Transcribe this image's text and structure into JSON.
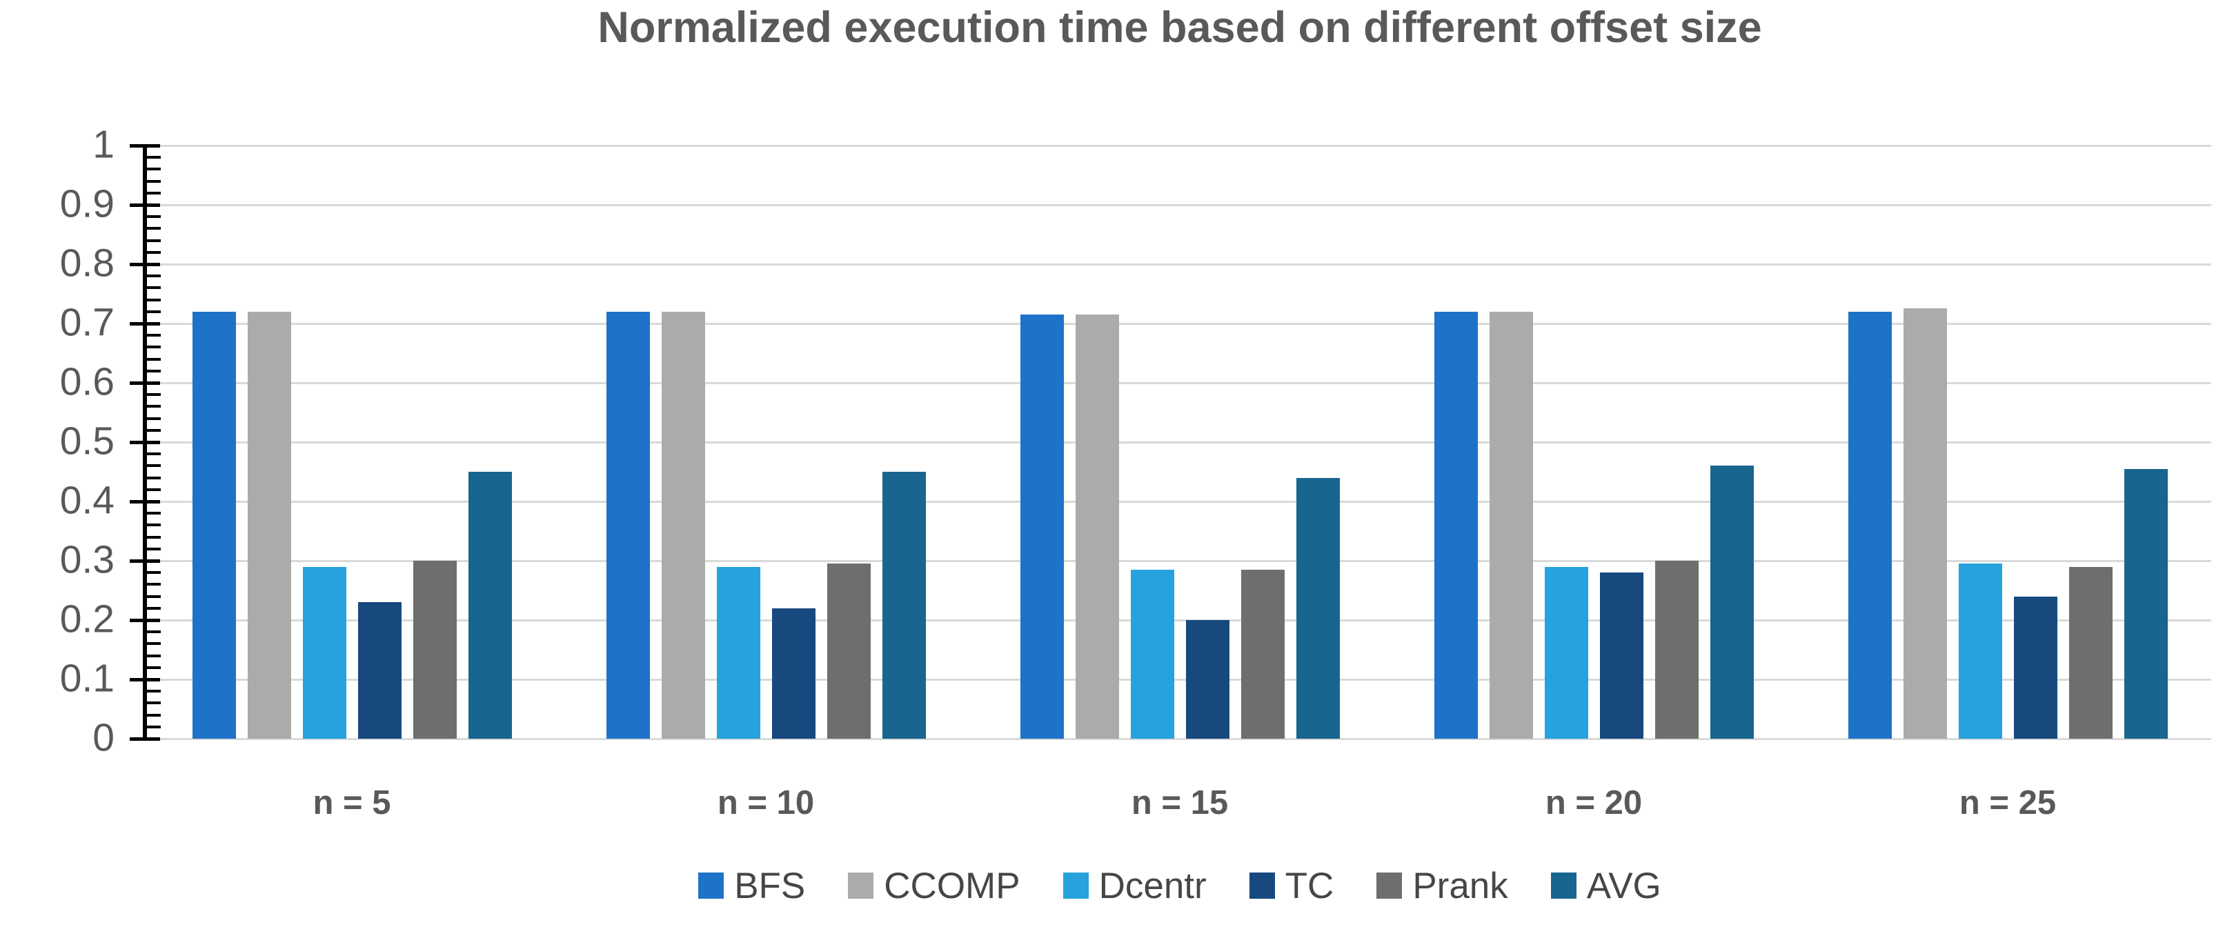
{
  "title": "Normalized execution time based on different offset size",
  "chart_data": {
    "type": "bar",
    "title": "Normalized execution time based on different offset size",
    "categories": [
      "n = 5",
      "n = 10",
      "n = 15",
      "n = 20",
      "n = 25"
    ],
    "series": [
      {
        "name": "BFS",
        "color": "#1e72c8",
        "values": [
          0.72,
          0.72,
          0.715,
          0.72,
          0.72
        ]
      },
      {
        "name": "CCOMP",
        "color": "#ababab",
        "values": [
          0.72,
          0.72,
          0.715,
          0.72,
          0.725
        ]
      },
      {
        "name": "Dcentr",
        "color": "#27a2dc",
        "values": [
          0.29,
          0.29,
          0.285,
          0.29,
          0.295
        ]
      },
      {
        "name": "TC",
        "color": "#17497e",
        "values": [
          0.23,
          0.22,
          0.2,
          0.28,
          0.24
        ]
      },
      {
        "name": "Prank",
        "color": "#6e6e6e",
        "values": [
          0.3,
          0.295,
          0.285,
          0.3,
          0.29
        ]
      },
      {
        "name": "AVG",
        "color": "#186590",
        "values": [
          0.45,
          0.45,
          0.44,
          0.46,
          0.455
        ]
      }
    ],
    "xlabel": "",
    "ylabel": "",
    "ylim": [
      0,
      1
    ],
    "ytick_values": [
      0,
      0.1,
      0.2,
      0.3,
      0.4,
      0.5,
      0.6,
      0.7,
      0.8,
      0.9,
      1
    ],
    "ytick_labels": [
      "0",
      "0.1",
      "0.2",
      "0.3",
      "0.4",
      "0.5",
      "0.6",
      "0.7",
      "0.8",
      "0.9",
      "1"
    ],
    "minor_tick_step": 0.02,
    "grid": "horizontal",
    "gridline_color": "#d9d9d9",
    "axis_color": "#000000",
    "text_color": "#595959",
    "legend_position": "bottom",
    "legend_text_color": "#464646"
  }
}
